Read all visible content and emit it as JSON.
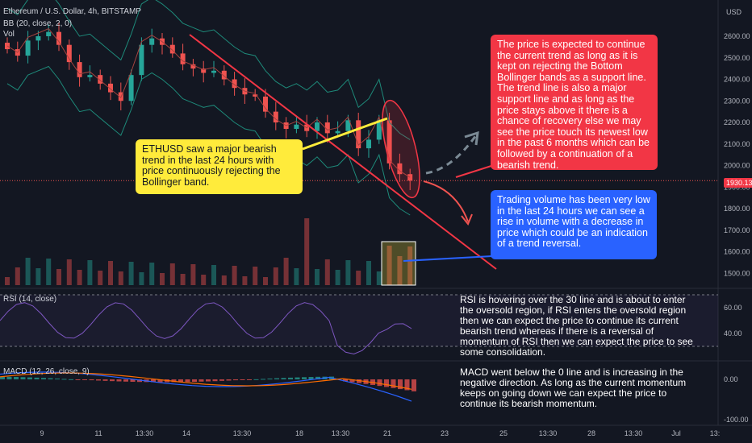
{
  "header": {
    "symbol": "Ethereum / U.S. Dollar, 4h, BITSTAMP",
    "bb": "BB (20, close, 2, 0)",
    "vol": "Vol",
    "currency": "USD"
  },
  "rsi_label": "RSI (14, close)",
  "macd_label": "MACD (12, 26, close, 9)",
  "price_tag": "1930.13",
  "notes": {
    "yellow": "ETHUSD saw a major bearish trend in the last 24 hours with price continuously rejecting the Bollinger band.",
    "red": "The price is expected to continue the current trend as long as it is kept on rejecting the Bottom Bollinger bands as a support line. The trend line is also a major support line and as long as the price stays above it there is a chance of recovery else we may see the price touch its newest low in the past 6 months which can be followed by a continuation of a bearish trend.",
    "blue": "Trading volume has been very low in the last 24 hours we can see a rise in volume with a decrease in price which could be an indication of a trend reversal.",
    "rsi": "RSI is hovering over the 30 line and is about to enter the oversold region, if RSI enters the oversold region then we can expect the price to continue its current bearish trend whereas if there is a reversal of momentum of RSI then we can expect the price to see some consolidation.",
    "macd": "MACD went below the 0 line and is increasing in the negative direction. As long as the current momentum keeps on going down we can expect the price to continue its bearish momentum."
  },
  "colors": {
    "background": "#131722",
    "up": "#26a69a",
    "down": "#ef5350",
    "bb_band": "#1e8a7a",
    "bb_mid": "#a5433f",
    "rsi_line": "#7e57c2",
    "macd_line": "#2962ff",
    "signal_line": "#ff6d00",
    "note_yellow": "#ffeb3b",
    "note_red": "#f23645",
    "note_blue": "#2962ff",
    "trendline": "#f23645"
  },
  "chart_data": [
    {
      "type": "candlestick",
      "title": "Ethereum / U.S. Dollar, 4h, BITSTAMP",
      "ylabel": "USD",
      "y_ticks": [
        2600,
        2500,
        2400,
        2300,
        2200,
        2100,
        2000,
        1900,
        1800,
        1700,
        1600,
        1500
      ],
      "ylim": [
        1460,
        2720
      ],
      "last_price": 1930.13,
      "x_ticks": [
        "9",
        "11",
        "13:30",
        "14",
        "13:30",
        "18",
        "13:30",
        "21",
        "23",
        "25",
        "13:30",
        "28",
        "13:30",
        "Jul",
        "13:"
      ],
      "approx_close_path": [
        2540,
        2510,
        2580,
        2600,
        2620,
        2560,
        2480,
        2410,
        2420,
        2380,
        2340,
        2300,
        2420,
        2560,
        2590,
        2560,
        2520,
        2470,
        2450,
        2430,
        2440,
        2400,
        2360,
        2330,
        2320,
        2250,
        2200,
        2170,
        2190,
        2160,
        2200,
        2150,
        2160,
        2210,
        2080,
        2120,
        2210,
        2010,
        1960,
        1930
      ]
    },
    {
      "type": "line",
      "title": "RSI (14, close)",
      "y_ticks": [
        60,
        40
      ],
      "ylim": [
        20,
        80
      ],
      "bands": [
        70,
        30
      ]
    },
    {
      "type": "bar",
      "title": "MACD (12, 26, close, 9)",
      "y_ticks": [
        0,
        -100
      ],
      "ylim": [
        -110,
        40
      ]
    }
  ]
}
